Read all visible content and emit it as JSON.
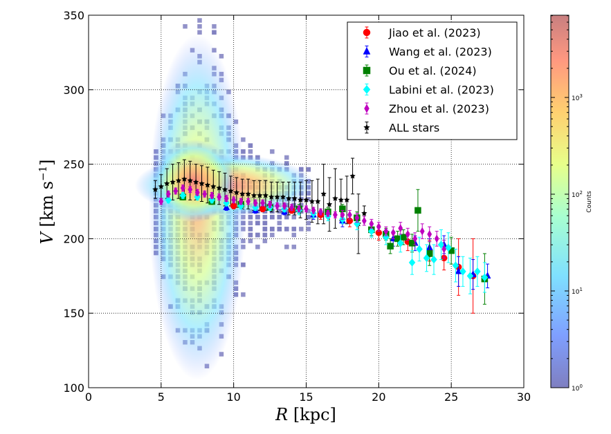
{
  "chart_data": {
    "type": "scatter",
    "xlabel": "R [kpc]",
    "ylabel": "V [km s^-1]",
    "xlim": [
      0,
      30
    ],
    "ylim": [
      100,
      350
    ],
    "x_ticks": [
      0,
      5,
      10,
      15,
      20,
      25,
      30
    ],
    "y_ticks": [
      100,
      150,
      200,
      250,
      300,
      350
    ],
    "grid": true,
    "legend_position": "top-right",
    "colorbar": {
      "label": "Counts",
      "scale": "log",
      "ticks": [
        "10^0",
        "10^1",
        "10^2",
        "10^3"
      ]
    },
    "series": [
      {
        "name": "Jiao et al. (2023)",
        "color": "#ff0000",
        "marker": "circle",
        "points": [
          {
            "x": 10.0,
            "y": 222,
            "err": 2
          },
          {
            "x": 12.0,
            "y": 220,
            "err": 2
          },
          {
            "x": 14.0,
            "y": 219,
            "err": 2
          },
          {
            "x": 16.0,
            "y": 216,
            "err": 3
          },
          {
            "x": 18.0,
            "y": 212,
            "err": 4
          },
          {
            "x": 20.0,
            "y": 204,
            "err": 5
          },
          {
            "x": 22.0,
            "y": 198,
            "err": 6
          },
          {
            "x": 23.5,
            "y": 192,
            "err": 7
          },
          {
            "x": 24.5,
            "y": 187,
            "err": 8
          },
          {
            "x": 25.5,
            "y": 181,
            "err": 19
          },
          {
            "x": 26.5,
            "y": 175,
            "err": 25
          }
        ]
      },
      {
        "name": "Wang et al. (2023)",
        "color": "#0000ff",
        "marker": "triangle",
        "points": [
          {
            "x": 9.5,
            "y": 221,
            "err": 2
          },
          {
            "x": 11.5,
            "y": 219,
            "err": 2
          },
          {
            "x": 13.5,
            "y": 218,
            "err": 2
          },
          {
            "x": 15.5,
            "y": 216,
            "err": 3
          },
          {
            "x": 17.5,
            "y": 212,
            "err": 4
          },
          {
            "x": 19.5,
            "y": 206,
            "err": 4
          },
          {
            "x": 21.0,
            "y": 200,
            "err": 5
          },
          {
            "x": 22.5,
            "y": 197,
            "err": 5
          },
          {
            "x": 23.5,
            "y": 194,
            "err": 6
          },
          {
            "x": 24.5,
            "y": 196,
            "err": 6
          },
          {
            "x": 25.5,
            "y": 178,
            "err": 10
          },
          {
            "x": 26.5,
            "y": 176,
            "err": 10
          },
          {
            "x": 27.5,
            "y": 175,
            "err": 8
          }
        ]
      },
      {
        "name": "Ou et al. (2024)",
        "color": "#008000",
        "marker": "square",
        "points": [
          {
            "x": 6.5,
            "y": 228,
            "err": 2
          },
          {
            "x": 8.5,
            "y": 225,
            "err": 2
          },
          {
            "x": 10.5,
            "y": 223,
            "err": 2
          },
          {
            "x": 12.5,
            "y": 221,
            "err": 2
          },
          {
            "x": 14.5,
            "y": 220,
            "err": 3
          },
          {
            "x": 16.5,
            "y": 218,
            "err": 3
          },
          {
            "x": 17.5,
            "y": 220,
            "err": 3
          },
          {
            "x": 18.5,
            "y": 214,
            "err": 4
          },
          {
            "x": 19.5,
            "y": 206,
            "err": 4
          },
          {
            "x": 20.5,
            "y": 203,
            "err": 4
          },
          {
            "x": 20.8,
            "y": 195,
            "err": 5
          },
          {
            "x": 21.3,
            "y": 200,
            "err": 5
          },
          {
            "x": 21.7,
            "y": 201,
            "err": 5
          },
          {
            "x": 22.3,
            "y": 197,
            "err": 6
          },
          {
            "x": 22.7,
            "y": 219,
            "err": 14
          },
          {
            "x": 23.5,
            "y": 190,
            "err": 8
          },
          {
            "x": 25.0,
            "y": 192,
            "err": 9
          },
          {
            "x": 27.3,
            "y": 173,
            "err": 17
          }
        ]
      },
      {
        "name": "Labini et al. (2023)",
        "color": "#00ffff",
        "marker": "diamond",
        "points": [
          {
            "x": 5.5,
            "y": 226,
            "err": 2
          },
          {
            "x": 6.5,
            "y": 229,
            "err": 2
          },
          {
            "x": 7.5,
            "y": 228,
            "err": 2
          },
          {
            "x": 8.5,
            "y": 226,
            "err": 2
          },
          {
            "x": 9.5,
            "y": 224,
            "err": 2
          },
          {
            "x": 10.5,
            "y": 222,
            "err": 2
          },
          {
            "x": 11.5,
            "y": 221,
            "err": 2
          },
          {
            "x": 12.5,
            "y": 221,
            "err": 2
          },
          {
            "x": 13.5,
            "y": 220,
            "err": 2
          },
          {
            "x": 14.5,
            "y": 219,
            "err": 3
          },
          {
            "x": 15.5,
            "y": 217,
            "err": 3
          },
          {
            "x": 16.5,
            "y": 215,
            "err": 3
          },
          {
            "x": 17.5,
            "y": 213,
            "err": 3
          },
          {
            "x": 18.5,
            "y": 210,
            "err": 4
          },
          {
            "x": 19.5,
            "y": 205,
            "err": 4
          },
          {
            "x": 20.5,
            "y": 201,
            "err": 5
          },
          {
            "x": 21.5,
            "y": 197,
            "err": 6
          },
          {
            "x": 22.3,
            "y": 184,
            "err": 8
          },
          {
            "x": 22.8,
            "y": 193,
            "err": 8
          },
          {
            "x": 23.3,
            "y": 187,
            "err": 9
          },
          {
            "x": 23.8,
            "y": 186,
            "err": 10
          },
          {
            "x": 24.3,
            "y": 196,
            "err": 10
          },
          {
            "x": 24.8,
            "y": 194,
            "err": 10
          },
          {
            "x": 25.3,
            "y": 182,
            "err": 11
          },
          {
            "x": 25.8,
            "y": 178,
            "err": 10
          },
          {
            "x": 26.3,
            "y": 175,
            "err": 12
          },
          {
            "x": 26.8,
            "y": 178,
            "err": 10
          },
          {
            "x": 27.3,
            "y": 174,
            "err": 10
          }
        ]
      },
      {
        "name": "Zhou et al. (2023)",
        "color": "#bf00bf",
        "marker": "thin_diamond",
        "points": [
          {
            "x": 5.0,
            "y": 225,
            "err": 2
          },
          {
            "x": 5.5,
            "y": 230,
            "err": 2
          },
          {
            "x": 6.0,
            "y": 232,
            "err": 2
          },
          {
            "x": 6.5,
            "y": 234,
            "err": 2
          },
          {
            "x": 7.0,
            "y": 233,
            "err": 2
          },
          {
            "x": 7.5,
            "y": 231,
            "err": 2
          },
          {
            "x": 8.0,
            "y": 230,
            "err": 2
          },
          {
            "x": 8.5,
            "y": 229,
            "err": 2
          },
          {
            "x": 9.0,
            "y": 228,
            "err": 2
          },
          {
            "x": 9.5,
            "y": 227,
            "err": 2
          },
          {
            "x": 10.0,
            "y": 226,
            "err": 2
          },
          {
            "x": 10.5,
            "y": 225,
            "err": 2
          },
          {
            "x": 11.0,
            "y": 225,
            "err": 2
          },
          {
            "x": 11.5,
            "y": 224,
            "err": 2
          },
          {
            "x": 12.0,
            "y": 224,
            "err": 2
          },
          {
            "x": 12.5,
            "y": 223,
            "err": 2
          },
          {
            "x": 13.0,
            "y": 222,
            "err": 2
          },
          {
            "x": 13.5,
            "y": 222,
            "err": 2
          },
          {
            "x": 14.0,
            "y": 221,
            "err": 2
          },
          {
            "x": 14.5,
            "y": 220,
            "err": 2
          },
          {
            "x": 15.0,
            "y": 220,
            "err": 2
          },
          {
            "x": 15.5,
            "y": 219,
            "err": 2
          },
          {
            "x": 16.0,
            "y": 218,
            "err": 2
          },
          {
            "x": 16.5,
            "y": 217,
            "err": 2
          },
          {
            "x": 17.0,
            "y": 216,
            "err": 2
          },
          {
            "x": 17.5,
            "y": 216,
            "err": 3
          },
          {
            "x": 18.0,
            "y": 216,
            "err": 3
          },
          {
            "x": 18.5,
            "y": 214,
            "err": 3
          },
          {
            "x": 19.0,
            "y": 212,
            "err": 3
          },
          {
            "x": 19.5,
            "y": 210,
            "err": 3
          },
          {
            "x": 20.0,
            "y": 208,
            "err": 3
          },
          {
            "x": 20.5,
            "y": 205,
            "err": 3
          },
          {
            "x": 21.0,
            "y": 204,
            "err": 4
          },
          {
            "x": 21.5,
            "y": 207,
            "err": 4
          },
          {
            "x": 22.0,
            "y": 203,
            "err": 4
          },
          {
            "x": 22.5,
            "y": 200,
            "err": 4
          },
          {
            "x": 23.0,
            "y": 205,
            "err": 5
          },
          {
            "x": 23.5,
            "y": 203,
            "err": 5
          },
          {
            "x": 24.0,
            "y": 200,
            "err": 5
          },
          {
            "x": 24.5,
            "y": 193,
            "err": 6
          }
        ]
      },
      {
        "name": "ALL stars",
        "color": "#000000",
        "marker": "star",
        "points": [
          {
            "x": 4.6,
            "y": 233,
            "err": 6
          },
          {
            "x": 5.0,
            "y": 235,
            "err": 8
          },
          {
            "x": 5.4,
            "y": 237,
            "err": 10
          },
          {
            "x": 5.8,
            "y": 238,
            "err": 12
          },
          {
            "x": 6.2,
            "y": 239,
            "err": 12
          },
          {
            "x": 6.6,
            "y": 240,
            "err": 13
          },
          {
            "x": 7.0,
            "y": 239,
            "err": 13
          },
          {
            "x": 7.4,
            "y": 238,
            "err": 12
          },
          {
            "x": 7.8,
            "y": 237,
            "err": 12
          },
          {
            "x": 8.2,
            "y": 236,
            "err": 12
          },
          {
            "x": 8.6,
            "y": 235,
            "err": 11
          },
          {
            "x": 9.0,
            "y": 234,
            "err": 11
          },
          {
            "x": 9.4,
            "y": 233,
            "err": 11
          },
          {
            "x": 9.8,
            "y": 232,
            "err": 10
          },
          {
            "x": 10.2,
            "y": 231,
            "err": 10
          },
          {
            "x": 10.6,
            "y": 230,
            "err": 10
          },
          {
            "x": 11.0,
            "y": 230,
            "err": 10
          },
          {
            "x": 11.4,
            "y": 229,
            "err": 10
          },
          {
            "x": 11.8,
            "y": 229,
            "err": 10
          },
          {
            "x": 12.2,
            "y": 229,
            "err": 10
          },
          {
            "x": 12.6,
            "y": 228,
            "err": 10
          },
          {
            "x": 13.0,
            "y": 228,
            "err": 10
          },
          {
            "x": 13.4,
            "y": 228,
            "err": 10
          },
          {
            "x": 13.8,
            "y": 227,
            "err": 11
          },
          {
            "x": 14.2,
            "y": 227,
            "err": 11
          },
          {
            "x": 14.6,
            "y": 226,
            "err": 12
          },
          {
            "x": 15.0,
            "y": 226,
            "err": 13
          },
          {
            "x": 15.4,
            "y": 225,
            "err": 14
          },
          {
            "x": 15.8,
            "y": 225,
            "err": 15
          },
          {
            "x": 16.2,
            "y": 230,
            "err": 20
          },
          {
            "x": 16.6,
            "y": 223,
            "err": 18
          },
          {
            "x": 17.0,
            "y": 227,
            "err": 20
          },
          {
            "x": 17.4,
            "y": 226,
            "err": 14
          },
          {
            "x": 17.8,
            "y": 226,
            "err": 16
          },
          {
            "x": 18.2,
            "y": 242,
            "err": 12
          },
          {
            "x": 18.6,
            "y": 210,
            "err": 20
          },
          {
            "x": 19.0,
            "y": 217,
            "err": 5
          }
        ]
      }
    ]
  }
}
